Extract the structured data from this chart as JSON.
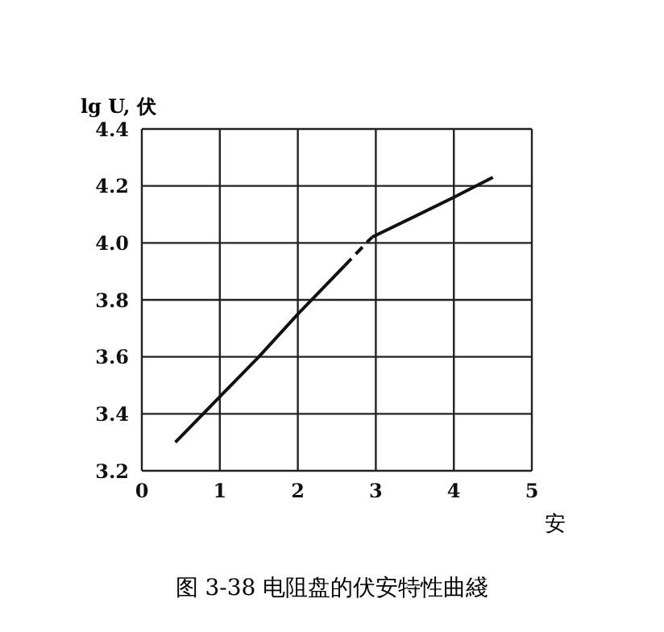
{
  "chart_data": {
    "type": "line",
    "title": "图 3-38 电阻盘的伏安特性曲綫",
    "xlabel": "安",
    "ylabel": "lg U, 伏",
    "xlim": [
      0,
      5
    ],
    "xticks": [
      0,
      1,
      2,
      3,
      4,
      5
    ],
    "ylim": [
      3.2,
      4.4
    ],
    "yticks": [
      {
        "value": 3.2,
        "label": "3.2"
      },
      {
        "value": 3.4,
        "label": "3.4"
      },
      {
        "value": 3.6,
        "label": "3.6"
      },
      {
        "value": 3.8,
        "label": "3.8"
      },
      {
        "value": 4,
        "label": "4.0"
      },
      {
        "value": 4.2,
        "label": "4.2"
      },
      {
        "value": 4.4,
        "label": "4.4"
      }
    ],
    "grid": true,
    "marker": "none",
    "series": [
      {
        "color": "#111111",
        "line_style": "solid",
        "x": [
          0.43,
          1,
          1.5,
          2,
          2.6
        ],
        "values": [
          3.3,
          3.46,
          3.6,
          3.75,
          3.92
        ]
      },
      {
        "color": "#111111",
        "line_style": "dashed",
        "x": [
          2.6,
          2.95
        ],
        "values": [
          3.92,
          4.02
        ]
      },
      {
        "color": "#111111",
        "line_style": "solid",
        "x": [
          2.95,
          4,
          4.5
        ],
        "values": [
          4.02,
          4.16,
          4.23
        ]
      }
    ]
  }
}
